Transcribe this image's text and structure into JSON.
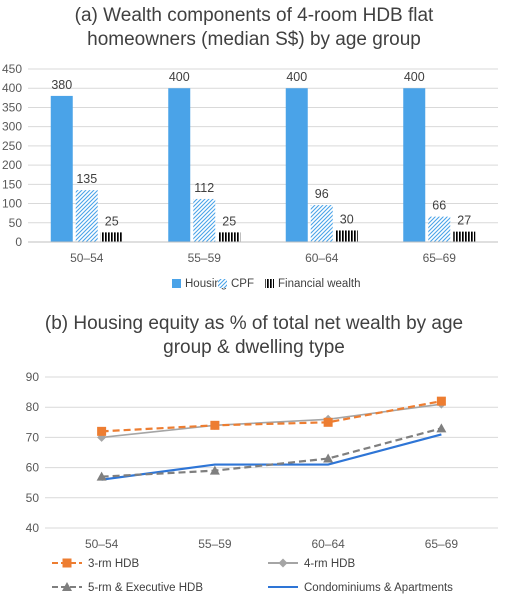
{
  "chart_data": [
    {
      "type": "bar",
      "title": "(a)  Wealth components of 4-room HDB flat homeowners (median S$) by age group",
      "title_lines": [
        "(a)  Wealth components of 4-room HDB flat",
        "homeowners (median S$) by age group"
      ],
      "categories": [
        "50–54",
        "55–59",
        "60–64",
        "65–69"
      ],
      "series": [
        {
          "name": "Housing",
          "values": [
            380,
            400,
            400,
            400
          ],
          "color": "#4aa3e8",
          "pattern": "solid"
        },
        {
          "name": "CPF",
          "values": [
            135,
            112,
            96,
            66
          ],
          "color": "#4aa3e8",
          "pattern": "diagonal-hatch"
        },
        {
          "name": "Financial wealth",
          "values": [
            25,
            25,
            30,
            27
          ],
          "color": "#000000",
          "pattern": "vertical-stripes"
        }
      ],
      "yticks": [
        "0",
        "50",
        "100",
        "150",
        "200",
        "250",
        "300",
        "350",
        "400",
        "450"
      ],
      "ylim": [
        0,
        450
      ],
      "grid": true,
      "legend": "bottom"
    },
    {
      "type": "line",
      "title": "(b) Housing equity as % of total net wealth by age group & dwelling type",
      "title_lines": [
        "(b) Housing equity as % of total net wealth by age",
        "group & dwelling type"
      ],
      "categories": [
        "50–54",
        "55–59",
        "60–64",
        "65–69"
      ],
      "series": [
        {
          "name": "3-rm HDB",
          "values": [
            72,
            74,
            75,
            82
          ],
          "color": "#ed7d31",
          "style": "dashed",
          "marker": "square"
        },
        {
          "name": "4-rm HDB",
          "values": [
            70,
            74,
            76,
            81
          ],
          "color": "#a5a5a5",
          "style": "solid",
          "marker": "diamond"
        },
        {
          "name": "5-rm & Executive HDB",
          "values": [
            57,
            59,
            63,
            73
          ],
          "color": "#7f7f7f",
          "style": "dashed",
          "marker": "triangle"
        },
        {
          "name": "Condominiums & Apartments",
          "values": [
            56,
            61,
            61,
            71
          ],
          "color": "#2e75d6",
          "style": "solid",
          "marker": "none"
        }
      ],
      "yticks": [
        "40",
        "50",
        "60",
        "70",
        "80",
        "90"
      ],
      "ylim": [
        40,
        90
      ],
      "grid": true,
      "legend": "bottom"
    }
  ]
}
